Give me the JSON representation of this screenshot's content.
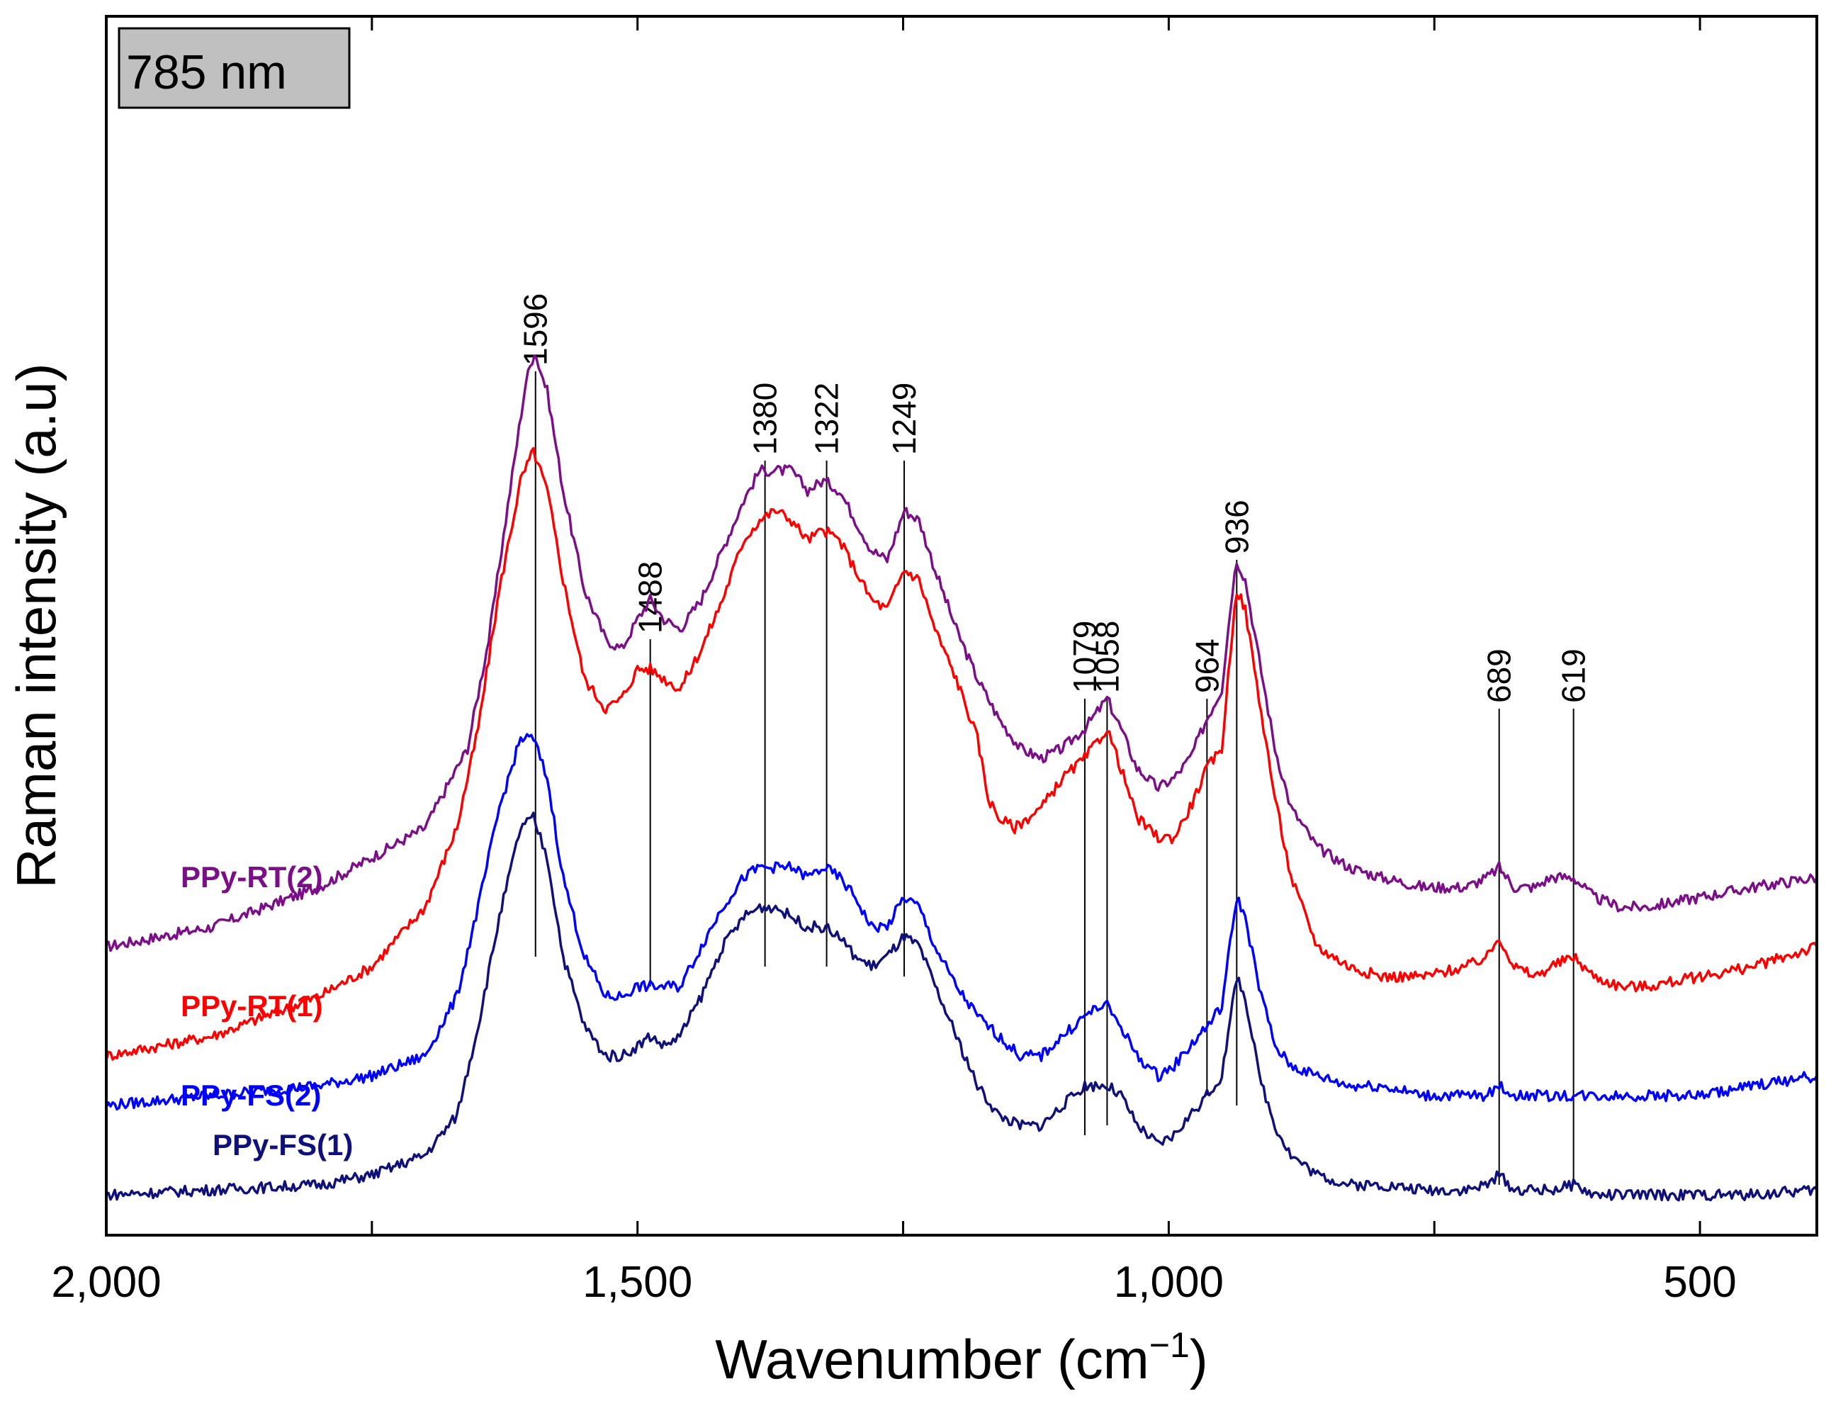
{
  "chart_data": {
    "type": "line",
    "badge": "785 nm",
    "xlabel": "Wavenumber (cm",
    "xlabel_sup": "−1",
    "xlabel_close": ")",
    "ylabel": "Raman intensity (a.u)",
    "xlim": [
      2000,
      390
    ],
    "x_reversed": true,
    "ylim": [
      0,
      100
    ],
    "yticks_shown": false,
    "xticks": [
      2000,
      1750,
      1500,
      1250,
      1000,
      750,
      500
    ],
    "xtick_labels": [
      "2,000",
      "",
      "1,500",
      "",
      "1,000",
      "",
      "500"
    ],
    "peaks": [
      {
        "label": "1596",
        "x": 1596,
        "top": 84,
        "bottom": 25
      },
      {
        "label": "1488",
        "x": 1488,
        "top": 57,
        "bottom": 22
      },
      {
        "label": "1380",
        "x": 1380,
        "top": 75,
        "bottom": 24
      },
      {
        "label": "1322",
        "x": 1322,
        "top": 75,
        "bottom": 24
      },
      {
        "label": "1249",
        "x": 1249,
        "top": 75,
        "bottom": 23
      },
      {
        "label": "1079",
        "x": 1079,
        "top": 51,
        "bottom": 7
      },
      {
        "label": "1058",
        "x": 1058,
        "top": 51,
        "bottom": 8
      },
      {
        "label": "964",
        "x": 964,
        "top": 51,
        "bottom": 11
      },
      {
        "label": "936",
        "x": 936,
        "top": 65,
        "bottom": 10
      },
      {
        "label": "689",
        "x": 689,
        "top": 50,
        "bottom": 2
      },
      {
        "label": "619",
        "x": 619,
        "top": 50,
        "bottom": 2
      }
    ],
    "series": [
      {
        "name": "PPy-RT(2)",
        "color": "#7b0f87",
        "label_x": 1930,
        "label_y": 32,
        "points": [
          [
            2000,
            26
          ],
          [
            1900,
            28
          ],
          [
            1800,
            32
          ],
          [
            1750,
            35
          ],
          [
            1700,
            38
          ],
          [
            1660,
            46
          ],
          [
            1640,
            57
          ],
          [
            1620,
            72
          ],
          [
            1605,
            83
          ],
          [
            1597,
            86
          ],
          [
            1585,
            82
          ],
          [
            1570,
            72
          ],
          [
            1550,
            62
          ],
          [
            1530,
            57
          ],
          [
            1515,
            56
          ],
          [
            1500,
            59
          ],
          [
            1488,
            61
          ],
          [
            1475,
            59
          ],
          [
            1460,
            58
          ],
          [
            1440,
            61
          ],
          [
            1420,
            66
          ],
          [
            1400,
            71
          ],
          [
            1385,
            74
          ],
          [
            1370,
            74
          ],
          [
            1355,
            74
          ],
          [
            1340,
            72
          ],
          [
            1325,
            73
          ],
          [
            1310,
            72
          ],
          [
            1295,
            69
          ],
          [
            1280,
            66
          ],
          [
            1265,
            65
          ],
          [
            1249,
            70
          ],
          [
            1235,
            69
          ],
          [
            1220,
            64
          ],
          [
            1200,
            58
          ],
          [
            1180,
            53
          ],
          [
            1160,
            49
          ],
          [
            1140,
            46
          ],
          [
            1120,
            45
          ],
          [
            1100,
            46
          ],
          [
            1079,
            48
          ],
          [
            1065,
            50
          ],
          [
            1058,
            51
          ],
          [
            1045,
            48
          ],
          [
            1030,
            44
          ],
          [
            1010,
            42
          ],
          [
            995,
            43
          ],
          [
            980,
            45
          ],
          [
            964,
            49
          ],
          [
            950,
            52
          ],
          [
            940,
            62
          ],
          [
            936,
            65
          ],
          [
            928,
            63
          ],
          [
            915,
            55
          ],
          [
            900,
            46
          ],
          [
            885,
            40
          ],
          [
            860,
            36
          ],
          [
            830,
            34
          ],
          [
            800,
            33
          ],
          [
            760,
            32
          ],
          [
            720,
            32
          ],
          [
            700,
            33
          ],
          [
            689,
            34
          ],
          [
            675,
            32
          ],
          [
            655,
            32
          ],
          [
            640,
            33
          ],
          [
            619,
            33
          ],
          [
            600,
            31
          ],
          [
            575,
            30
          ],
          [
            550,
            30
          ],
          [
            500,
            31
          ],
          [
            450,
            32
          ],
          [
            390,
            33
          ]
        ]
      },
      {
        "name": "PPy-RT(1)",
        "color": "#ff0000",
        "label_x": 1930,
        "label_y": 19,
        "points": [
          [
            2000,
            15
          ],
          [
            1900,
            17
          ],
          [
            1800,
            21
          ],
          [
            1750,
            24
          ],
          [
            1700,
            30
          ],
          [
            1670,
            38
          ],
          [
            1650,
            48
          ],
          [
            1630,
            62
          ],
          [
            1610,
            73
          ],
          [
            1598,
            76
          ],
          [
            1585,
            72
          ],
          [
            1570,
            63
          ],
          [
            1550,
            53
          ],
          [
            1530,
            50
          ],
          [
            1515,
            51
          ],
          [
            1500,
            54
          ],
          [
            1488,
            54
          ],
          [
            1475,
            53
          ],
          [
            1460,
            52
          ],
          [
            1440,
            56
          ],
          [
            1420,
            61
          ],
          [
            1400,
            67
          ],
          [
            1385,
            69
          ],
          [
            1370,
            70
          ],
          [
            1355,
            69
          ],
          [
            1340,
            67
          ],
          [
            1325,
            68
          ],
          [
            1310,
            67
          ],
          [
            1295,
            64
          ],
          [
            1280,
            61
          ],
          [
            1265,
            60
          ],
          [
            1249,
            64
          ],
          [
            1235,
            63
          ],
          [
            1220,
            58
          ],
          [
            1200,
            53
          ],
          [
            1180,
            47
          ],
          [
            1170,
            41
          ],
          [
            1160,
            39
          ],
          [
            1145,
            38
          ],
          [
            1120,
            40
          ],
          [
            1100,
            43
          ],
          [
            1079,
            45
          ],
          [
            1065,
            47
          ],
          [
            1058,
            48
          ],
          [
            1045,
            44
          ],
          [
            1030,
            39
          ],
          [
            1010,
            37
          ],
          [
            995,
            37
          ],
          [
            980,
            40
          ],
          [
            964,
            44
          ],
          [
            950,
            46
          ],
          [
            940,
            58
          ],
          [
            936,
            62
          ],
          [
            928,
            60
          ],
          [
            915,
            51
          ],
          [
            900,
            41
          ],
          [
            885,
            33
          ],
          [
            860,
            26
          ],
          [
            830,
            24
          ],
          [
            800,
            23
          ],
          [
            760,
            23
          ],
          [
            720,
            24
          ],
          [
            700,
            25
          ],
          [
            689,
            27
          ],
          [
            675,
            24
          ],
          [
            655,
            23
          ],
          [
            640,
            24
          ],
          [
            619,
            25
          ],
          [
            600,
            23
          ],
          [
            575,
            22
          ],
          [
            550,
            22
          ],
          [
            500,
            23
          ],
          [
            450,
            24
          ],
          [
            390,
            26
          ]
        ]
      },
      {
        "name": "PPy-FS(2)",
        "color": "#0000ff",
        "label_x": 1930,
        "label_y": 10,
        "points": [
          [
            2000,
            10
          ],
          [
            1900,
            11
          ],
          [
            1800,
            12
          ],
          [
            1750,
            13
          ],
          [
            1700,
            15
          ],
          [
            1670,
            21
          ],
          [
            1650,
            30
          ],
          [
            1630,
            40
          ],
          [
            1610,
            47
          ],
          [
            1598,
            47
          ],
          [
            1585,
            43
          ],
          [
            1570,
            33
          ],
          [
            1550,
            25
          ],
          [
            1530,
            21
          ],
          [
            1515,
            21
          ],
          [
            1500,
            22
          ],
          [
            1488,
            22
          ],
          [
            1475,
            22
          ],
          [
            1460,
            22
          ],
          [
            1440,
            26
          ],
          [
            1420,
            30
          ],
          [
            1400,
            33
          ],
          [
            1385,
            34
          ],
          [
            1370,
            34
          ],
          [
            1355,
            34
          ],
          [
            1340,
            33
          ],
          [
            1325,
            34
          ],
          [
            1310,
            33
          ],
          [
            1295,
            31
          ],
          [
            1280,
            28
          ],
          [
            1265,
            28
          ],
          [
            1249,
            31
          ],
          [
            1235,
            30
          ],
          [
            1220,
            26
          ],
          [
            1200,
            22
          ],
          [
            1180,
            19
          ],
          [
            1160,
            17
          ],
          [
            1140,
            15
          ],
          [
            1120,
            15
          ],
          [
            1100,
            17
          ],
          [
            1079,
            19
          ],
          [
            1065,
            20
          ],
          [
            1058,
            20
          ],
          [
            1045,
            18
          ],
          [
            1030,
            15
          ],
          [
            1010,
            13
          ],
          [
            995,
            14
          ],
          [
            980,
            16
          ],
          [
            964,
            18
          ],
          [
            950,
            20
          ],
          [
            940,
            28
          ],
          [
            936,
            31
          ],
          [
            928,
            29
          ],
          [
            915,
            22
          ],
          [
            900,
            16
          ],
          [
            885,
            14
          ],
          [
            860,
            13
          ],
          [
            830,
            12
          ],
          [
            800,
            12
          ],
          [
            760,
            11
          ],
          [
            720,
            11
          ],
          [
            700,
            11
          ],
          [
            689,
            12
          ],
          [
            675,
            11
          ],
          [
            655,
            11
          ],
          [
            640,
            11
          ],
          [
            619,
            11
          ],
          [
            600,
            11
          ],
          [
            575,
            11
          ],
          [
            550,
            11
          ],
          [
            500,
            11
          ],
          [
            450,
            12
          ],
          [
            390,
            13
          ]
        ]
      },
      {
        "name": "PPy-FS(1)",
        "color": "#10107a",
        "label_x": 1900,
        "label_y": 5,
        "points": [
          [
            2000,
            1
          ],
          [
            1900,
            1.5
          ],
          [
            1800,
            2
          ],
          [
            1750,
            3
          ],
          [
            1700,
            5
          ],
          [
            1670,
            9
          ],
          [
            1650,
            18
          ],
          [
            1630,
            29
          ],
          [
            1610,
            38
          ],
          [
            1598,
            39
          ],
          [
            1585,
            35
          ],
          [
            1570,
            25
          ],
          [
            1550,
            18
          ],
          [
            1530,
            15
          ],
          [
            1515,
            15
          ],
          [
            1500,
            16
          ],
          [
            1488,
            17
          ],
          [
            1475,
            16
          ],
          [
            1460,
            17
          ],
          [
            1440,
            21
          ],
          [
            1420,
            26
          ],
          [
            1400,
            29
          ],
          [
            1385,
            30
          ],
          [
            1370,
            30
          ],
          [
            1355,
            29
          ],
          [
            1340,
            28
          ],
          [
            1325,
            28
          ],
          [
            1310,
            27
          ],
          [
            1295,
            25
          ],
          [
            1280,
            24
          ],
          [
            1265,
            25
          ],
          [
            1249,
            27
          ],
          [
            1235,
            26
          ],
          [
            1220,
            22
          ],
          [
            1200,
            17
          ],
          [
            1180,
            12
          ],
          [
            1160,
            9
          ],
          [
            1140,
            8
          ],
          [
            1120,
            8
          ],
          [
            1100,
            10
          ],
          [
            1079,
            12
          ],
          [
            1065,
            12
          ],
          [
            1058,
            12
          ],
          [
            1045,
            11
          ],
          [
            1030,
            8
          ],
          [
            1010,
            6
          ],
          [
            995,
            7
          ],
          [
            980,
            9
          ],
          [
            964,
            11
          ],
          [
            950,
            13
          ],
          [
            940,
            20
          ],
          [
            936,
            23
          ],
          [
            928,
            21
          ],
          [
            915,
            13
          ],
          [
            900,
            8
          ],
          [
            885,
            5
          ],
          [
            860,
            3
          ],
          [
            830,
            2
          ],
          [
            800,
            2
          ],
          [
            760,
            1.5
          ],
          [
            720,
            1.5
          ],
          [
            700,
            2
          ],
          [
            689,
            3
          ],
          [
            675,
            1.5
          ],
          [
            655,
            1.5
          ],
          [
            640,
            1.5
          ],
          [
            619,
            2
          ],
          [
            600,
            1
          ],
          [
            575,
            1
          ],
          [
            550,
            1
          ],
          [
            500,
            1
          ],
          [
            450,
            1
          ],
          [
            390,
            1.5
          ]
        ]
      }
    ]
  }
}
